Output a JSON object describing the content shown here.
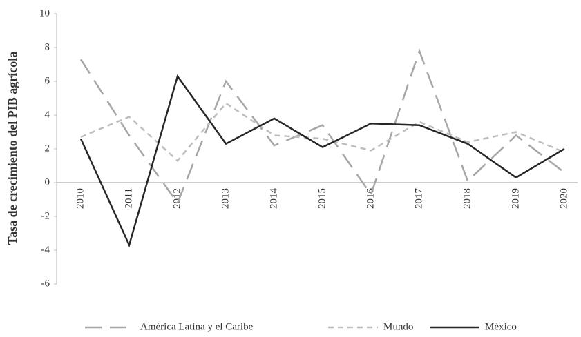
{
  "chart_data": {
    "type": "line",
    "y_label": "Tasa de crecimiento del PIB agrícola",
    "categories": [
      "2010",
      "2011",
      "2012",
      "2013",
      "2014",
      "2015",
      "2016",
      "2017",
      "2018",
      "2019",
      "2020"
    ],
    "series": [
      {
        "name": "América Latina y el Caribe",
        "color": "#a6a6a6",
        "dash": "long",
        "values": [
          7.3,
          2.8,
          -1.2,
          6.0,
          2.2,
          3.4,
          -0.7,
          7.8,
          0.1,
          2.8,
          0.6
        ]
      },
      {
        "name": "Mundo",
        "color": "#bdbdbd",
        "dash": "short",
        "values": [
          2.7,
          3.9,
          1.3,
          4.7,
          2.8,
          2.6,
          1.9,
          3.6,
          2.4,
          3.0,
          1.8
        ]
      },
      {
        "name": "México",
        "color": "#262626",
        "dash": "solid",
        "values": [
          2.6,
          -3.7,
          6.3,
          2.3,
          3.8,
          2.1,
          3.5,
          3.4,
          2.3,
          0.3,
          2.0
        ]
      }
    ],
    "ylim": [
      -6,
      10
    ],
    "yticks": [
      -6,
      -4,
      -2,
      0,
      2,
      4,
      6,
      8,
      10
    ],
    "legend": "bottom"
  }
}
